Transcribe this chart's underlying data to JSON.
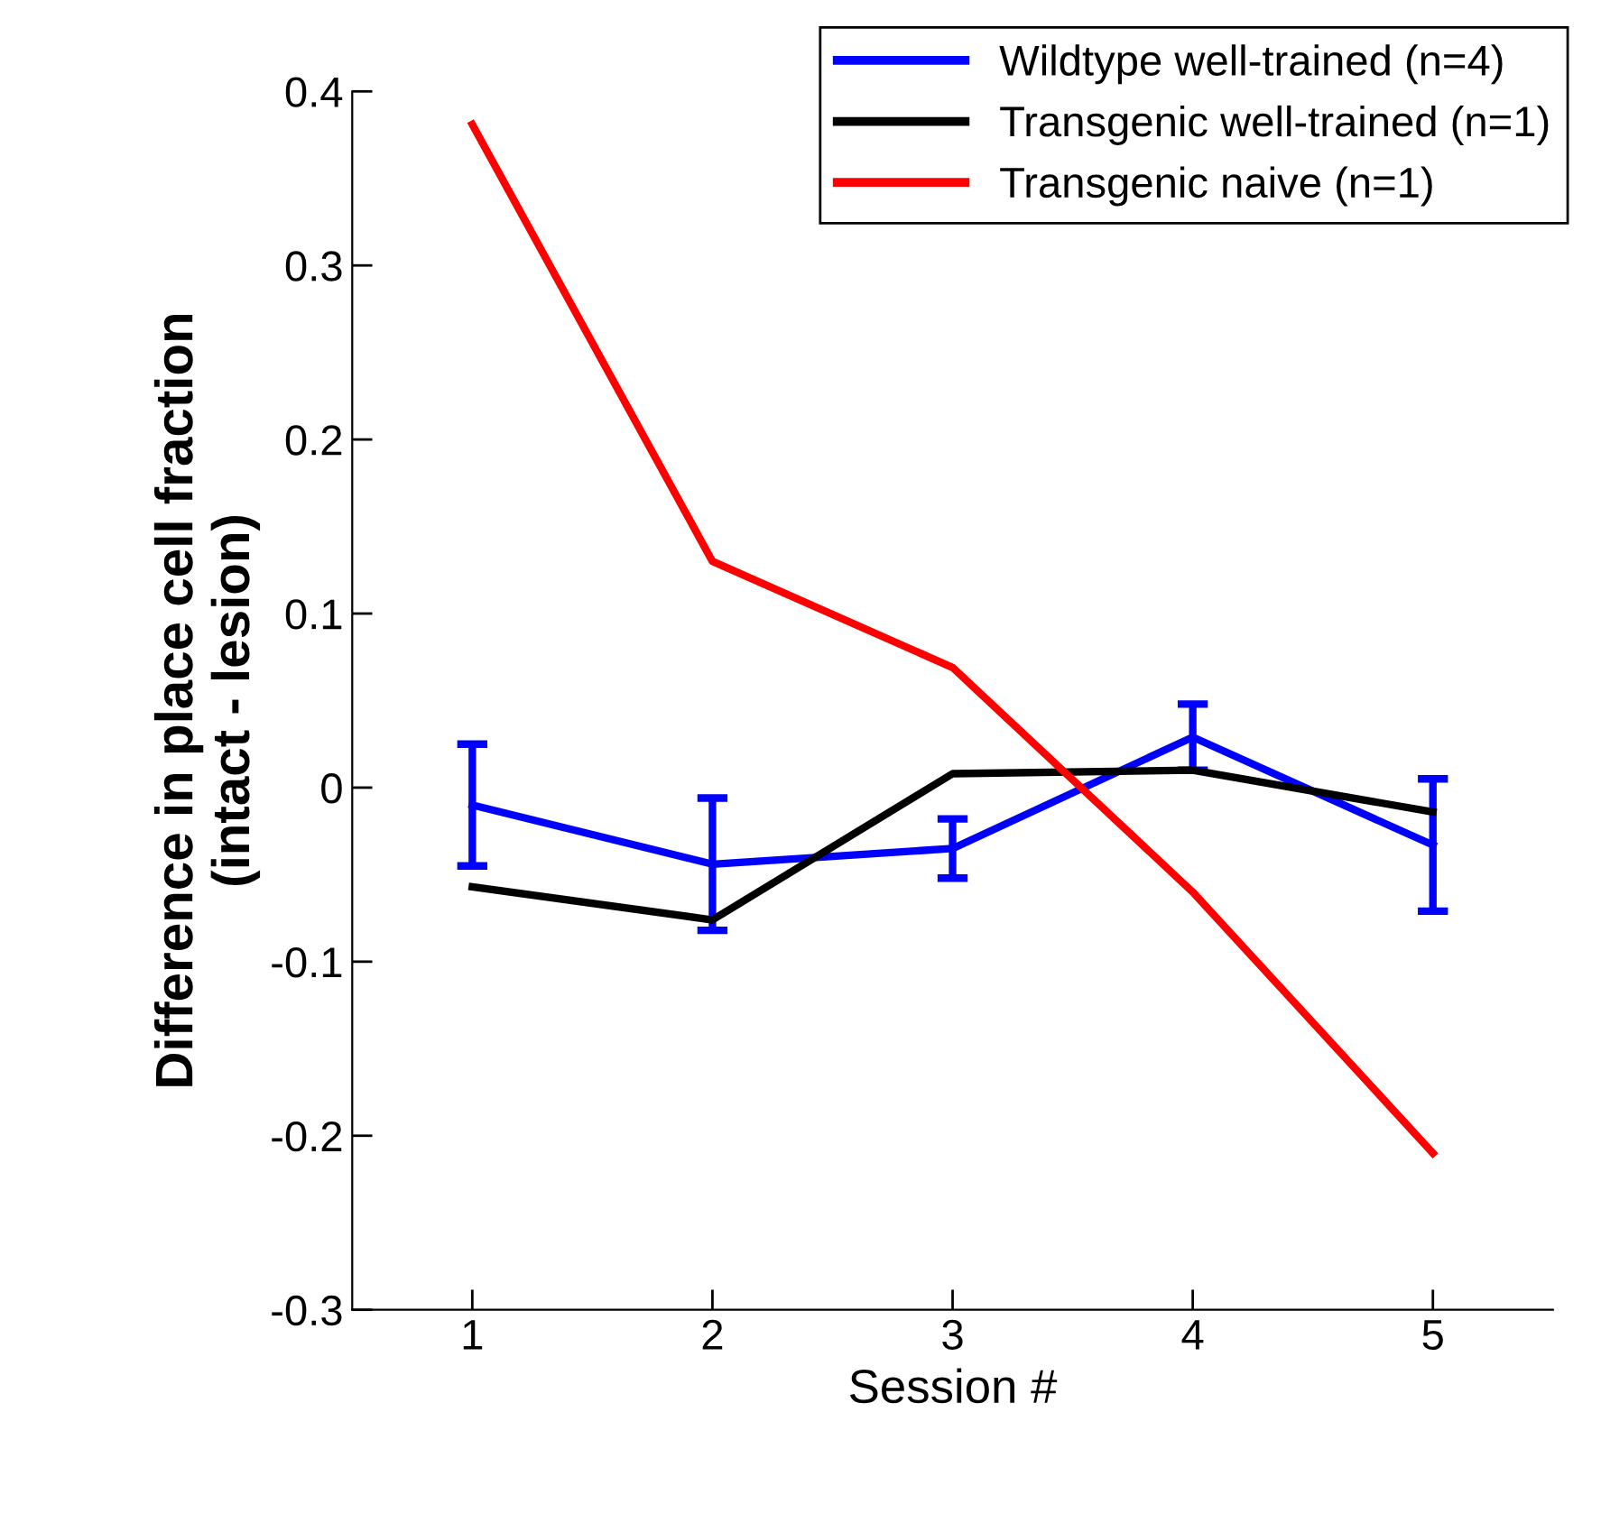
{
  "chart_data": {
    "type": "line",
    "xlabel": "Session #",
    "ylabel": "Difference in place cell fraction\n(intact - lesion)",
    "x": [
      1,
      2,
      3,
      4,
      5
    ],
    "series": [
      {
        "name": "Wildtype well-trained (n=4)",
        "color": "#0000ff",
        "values": [
          -0.01,
          -0.044,
          -0.035,
          0.029,
          -0.033
        ],
        "errors": [
          0.035,
          0.038,
          0.017,
          0.019,
          0.038
        ]
      },
      {
        "name": "Transgenic well-trained (n=1)",
        "color": "#000000",
        "values": [
          -0.057,
          -0.076,
          0.008,
          0.01,
          -0.014
        ]
      },
      {
        "name": "Transgenic naive (n=1)",
        "color": "#ff0000",
        "values": [
          0.381,
          0.13,
          0.069,
          -0.06,
          -0.21
        ]
      }
    ],
    "xlim": [
      0.5,
      5.5
    ],
    "xticks": [
      1,
      2,
      3,
      4,
      5
    ],
    "ylim": [
      -0.3,
      0.4
    ],
    "yticks": [
      {
        "value": -0.3,
        "label": "-0.3"
      },
      {
        "value": -0.2,
        "label": "-0.2"
      },
      {
        "value": -0.1,
        "label": "-0.1"
      },
      0,
      0.1,
      0.2,
      0.3,
      0.4
    ],
    "grid": false,
    "legend": "top right",
    "marker": "none",
    "line_style": "solid"
  }
}
